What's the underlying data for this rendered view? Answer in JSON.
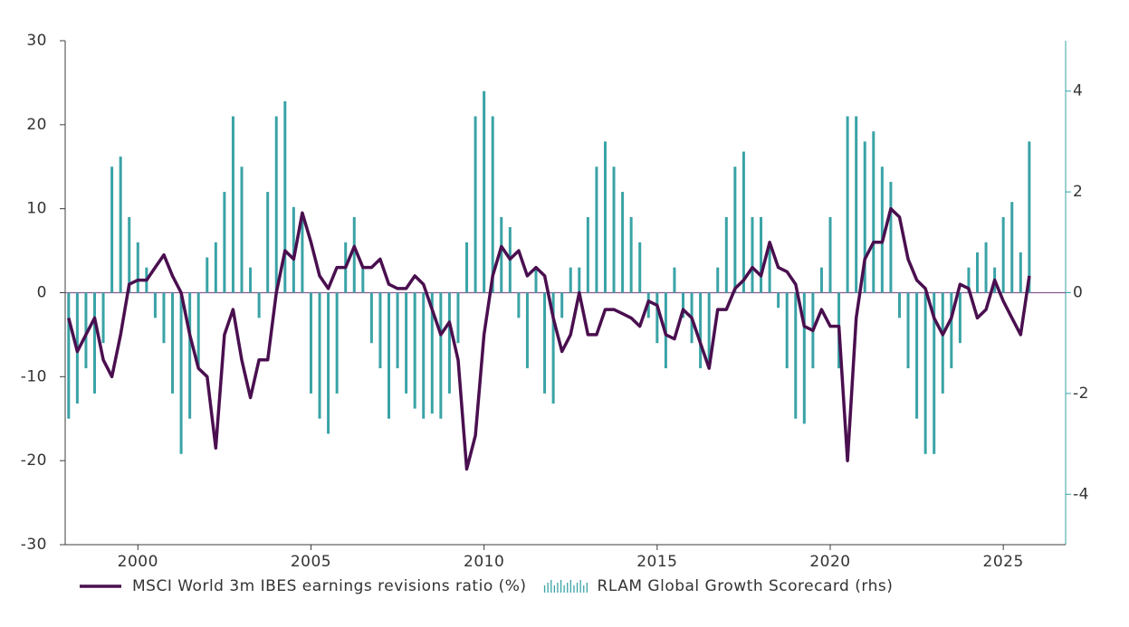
{
  "chart_data": {
    "type": "combo",
    "x": [
      1998.0,
      1998.25,
      1998.5,
      1998.75,
      1999.0,
      1999.25,
      1999.5,
      1999.75,
      2000.0,
      2000.25,
      2000.5,
      2000.75,
      2001.0,
      2001.25,
      2001.5,
      2001.75,
      2002.0,
      2002.25,
      2002.5,
      2002.75,
      2003.0,
      2003.25,
      2003.5,
      2003.75,
      2004.0,
      2004.25,
      2004.5,
      2004.75,
      2005.0,
      2005.25,
      2005.5,
      2005.75,
      2006.0,
      2006.25,
      2006.5,
      2006.75,
      2007.0,
      2007.25,
      2007.5,
      2007.75,
      2008.0,
      2008.25,
      2008.5,
      2008.75,
      2009.0,
      2009.25,
      2009.5,
      2009.75,
      2010.0,
      2010.25,
      2010.5,
      2010.75,
      2011.0,
      2011.25,
      2011.5,
      2011.75,
      2012.0,
      2012.25,
      2012.5,
      2012.75,
      2013.0,
      2013.25,
      2013.5,
      2013.75,
      2014.0,
      2014.25,
      2014.5,
      2014.75,
      2015.0,
      2015.25,
      2015.5,
      2015.75,
      2016.0,
      2016.25,
      2016.5,
      2016.75,
      2017.0,
      2017.25,
      2017.5,
      2017.75,
      2018.0,
      2018.25,
      2018.5,
      2018.75,
      2019.0,
      2019.25,
      2019.5,
      2019.75,
      2020.0,
      2020.25,
      2020.5,
      2020.75,
      2021.0,
      2021.25,
      2021.5,
      2021.75,
      2022.0,
      2022.25,
      2022.5,
      2022.75,
      2023.0,
      2023.25,
      2023.5,
      2023.75,
      2024.0,
      2024.25,
      2024.5,
      2024.75,
      2025.0,
      2025.25,
      2025.5,
      2025.75
    ],
    "series": [
      {
        "name": "MSCI World 3m IBES earnings revisions ratio (%)",
        "type": "line",
        "color": "#4a0f4f",
        "values": [
          -3,
          -7,
          -5,
          -3,
          -8,
          -10,
          -5,
          1,
          1.5,
          1.5,
          3,
          4.5,
          2,
          0,
          -5,
          -9,
          -10,
          -18.5,
          -5,
          -2,
          -8,
          -12.5,
          -8,
          -8,
          0,
          5,
          4,
          9.5,
          6,
          2,
          0.5,
          3,
          3,
          5.5,
          3,
          3,
          4,
          1,
          0.5,
          0.5,
          2,
          1,
          -2,
          -5,
          -3.5,
          -8,
          -21,
          -17,
          -5,
          2,
          5.5,
          4,
          5,
          2,
          3,
          2,
          -3,
          -7,
          -5,
          0,
          -5,
          -5,
          -2,
          -2,
          -2.5,
          -3,
          -4,
          -1,
          -1.5,
          -5,
          -5.5,
          -2,
          -3,
          -6,
          -9,
          -2,
          -2,
          0.5,
          1.5,
          3,
          2,
          6,
          3,
          2.5,
          1,
          -4,
          -4.5,
          -2,
          -4,
          -4,
          -20,
          -3,
          4,
          6,
          6,
          10,
          9,
          4,
          1.5,
          0.5,
          -3,
          -5,
          -3,
          1,
          0.5,
          -3,
          -2,
          1.5,
          -1,
          -3,
          -5,
          2
        ]
      },
      {
        "name": "RLAM Global Growth Scorecard (rhs)",
        "type": "bar",
        "axis": "y2",
        "color": "#3aa3a6",
        "values": [
          -2.5,
          -2.2,
          -1.5,
          -2.0,
          -1.0,
          2.5,
          2.7,
          1.5,
          1.0,
          0.5,
          -0.5,
          -1.0,
          -2.0,
          -3.2,
          -2.5,
          -1.5,
          0.7,
          1.0,
          2.0,
          3.5,
          2.5,
          0.5,
          -0.5,
          2.0,
          3.5,
          3.8,
          1.7,
          1.5,
          -2.0,
          -2.5,
          -2.8,
          -2.0,
          1.0,
          1.5,
          0.5,
          -1.0,
          -1.5,
          -2.5,
          -1.5,
          -2.0,
          -2.3,
          -2.5,
          -2.4,
          -2.5,
          -2.0,
          -1.0,
          1.0,
          3.5,
          4.0,
          3.5,
          1.5,
          1.3,
          -0.5,
          -1.5,
          0.5,
          -2.0,
          -2.2,
          -0.5,
          0.5,
          0.5,
          1.5,
          2.5,
          3.0,
          2.5,
          2.0,
          1.5,
          1.0,
          -0.5,
          -1.0,
          -1.5,
          0.5,
          -0.5,
          -1.0,
          -1.5,
          -1.5,
          0.5,
          1.5,
          2.5,
          2.8,
          1.5,
          1.5,
          1.0,
          -0.3,
          -1.5,
          -2.5,
          -2.6,
          -1.5,
          0.5,
          1.5,
          -1.5,
          3.5,
          3.5,
          3.0,
          3.2,
          2.5,
          2.2,
          -0.5,
          -1.5,
          -2.5,
          -3.2,
          -3.2,
          -2.0,
          -1.5,
          -1.0,
          0.5,
          0.8,
          1.0,
          0.5,
          1.5,
          1.8,
          0.8,
          3.0
        ]
      }
    ],
    "xlim": [
      1997.9,
      2026.8
    ],
    "xticks": [
      2000,
      2005,
      2010,
      2015,
      2020,
      2025
    ],
    "ylim": [
      -30,
      30
    ],
    "yticks": [
      -30,
      -20,
      -10,
      0,
      10,
      20,
      30
    ],
    "y2lim": [
      -5,
      5
    ],
    "y2ticks": [
      -4,
      -2,
      0,
      2,
      4
    ],
    "legend": "bottom"
  }
}
